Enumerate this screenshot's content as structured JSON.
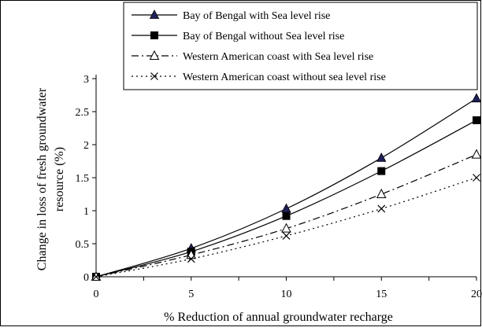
{
  "chart_data": {
    "type": "line",
    "title": "",
    "xlabel": "% Reduction of annual groundwater recharge",
    "ylabel": "Change in loss of fresh groundwater resource (%)",
    "ylabel_lines": [
      "Change in loss of fresh groundwater",
      "resource (%)"
    ],
    "x": [
      0,
      5,
      10,
      15,
      20
    ],
    "xlim": [
      0,
      20
    ],
    "ylim": [
      0,
      3
    ],
    "xticks": [
      "0",
      "5",
      "10",
      "15",
      "20"
    ],
    "yticks": [
      "0",
      "0.5",
      "1",
      "1.5",
      "2",
      "2.5",
      "3"
    ],
    "grid": false,
    "legend_position": "top",
    "series": [
      {
        "name": "Bay of Bengal with Sea level rise",
        "values": [
          0,
          0.43,
          1.03,
          1.8,
          2.7
        ],
        "marker": "filled-triangle",
        "line": "solid",
        "color": "#1f1f5a"
      },
      {
        "name": "Bay of Bengal without Sea level rise",
        "values": [
          0,
          0.38,
          0.92,
          1.6,
          2.37
        ],
        "marker": "filled-square",
        "line": "solid",
        "color": "#000000"
      },
      {
        "name": "Western American coast with Sea level rise",
        "values": [
          0,
          0.33,
          0.73,
          1.25,
          1.85
        ],
        "marker": "open-triangle",
        "line": "dash-dot",
        "color": "#000000"
      },
      {
        "name": "Western American coast without sea level rise",
        "values": [
          0,
          0.27,
          0.62,
          1.03,
          1.5
        ],
        "marker": "x",
        "line": "dotted",
        "color": "#000000"
      }
    ]
  }
}
